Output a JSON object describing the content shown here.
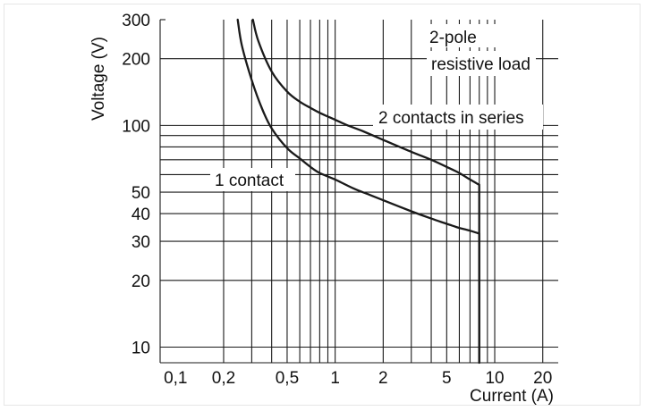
{
  "chart_data": {
    "type": "line",
    "title": "",
    "xlabel": "Current (A)",
    "ylabel": "Voltage (V)",
    "xscale": "log",
    "yscale": "log",
    "xlim": [
      0.08,
      25
    ],
    "ylim": [
      8.5,
      300
    ],
    "x_ticks": [
      {
        "value": 0.1,
        "label": "0,1"
      },
      {
        "value": 0.2,
        "label": "0,2"
      },
      {
        "value": 0.5,
        "label": "0,5"
      },
      {
        "value": 1,
        "label": "1"
      },
      {
        "value": 2,
        "label": "2"
      },
      {
        "value": 5,
        "label": "5"
      },
      {
        "value": 10,
        "label": "10"
      },
      {
        "value": 20,
        "label": "20"
      }
    ],
    "y_ticks": [
      {
        "value": 10,
        "label": "10"
      },
      {
        "value": 20,
        "label": "20"
      },
      {
        "value": 30,
        "label": "30"
      },
      {
        "value": 40,
        "label": "40"
      },
      {
        "value": 50,
        "label": "50"
      },
      {
        "value": 100,
        "label": "100"
      },
      {
        "value": 200,
        "label": "200"
      },
      {
        "value": 300,
        "label": "300"
      }
    ],
    "x_gridlines": [
      0.2,
      0.3,
      0.4,
      0.5,
      0.6,
      0.7,
      0.8,
      0.9,
      1,
      2,
      3,
      4,
      5,
      6,
      7,
      8,
      9,
      10,
      20
    ],
    "y_gridlines": [
      10,
      20,
      30,
      40,
      50,
      60,
      70,
      80,
      90,
      100,
      200
    ],
    "grid": true,
    "series": [
      {
        "name": "1 contact",
        "x": [
          0.245,
          0.26,
          0.3,
          0.35,
          0.4,
          0.5,
          0.6,
          0.7,
          0.8,
          1.0,
          1.3,
          1.6,
          2.0,
          3.0,
          4.0,
          5.0,
          6.0,
          7.0,
          8.0,
          8.0
        ],
        "y": [
          300,
          230,
          160,
          118,
          97,
          79,
          71,
          65,
          61,
          57,
          52,
          49,
          46,
          41,
          38,
          36,
          34.5,
          33.5,
          32.5,
          8.5
        ]
      },
      {
        "name": "2 contacts in series",
        "x": [
          0.305,
          0.33,
          0.4,
          0.5,
          0.6,
          0.7,
          0.8,
          1.0,
          1.2,
          1.5,
          2.0,
          3.0,
          4.0,
          5.0,
          6.0,
          7.0,
          8.0,
          8.0
        ],
        "y": [
          300,
          240,
          175,
          142,
          128,
          120,
          114,
          106,
          100,
          94,
          86,
          76,
          70,
          65,
          61,
          57,
          54,
          8.5
        ]
      }
    ],
    "annotations": {
      "two_pole": "2-pole",
      "resistive_load": "resistive load",
      "two_contacts": "2 contacts in series",
      "one_contact": "1 contact"
    }
  }
}
